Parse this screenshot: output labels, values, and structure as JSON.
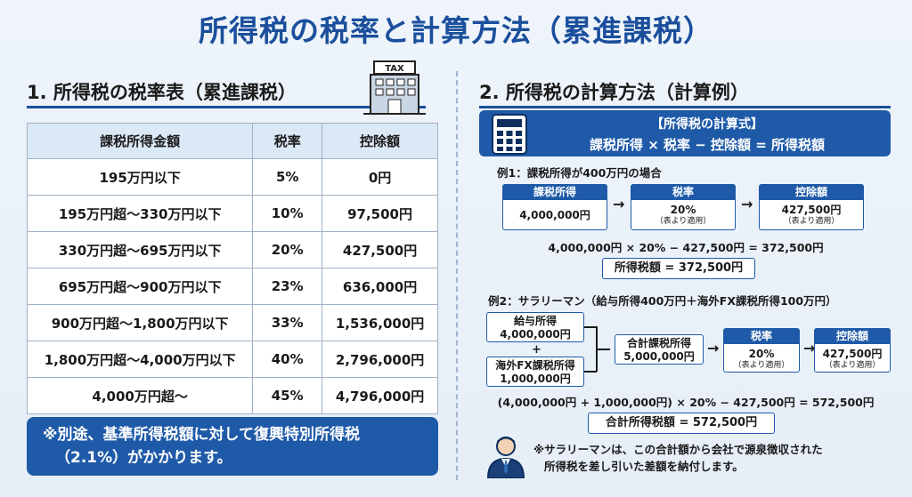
{
  "title": "所得税の税率と計算方法（累進課税）",
  "left": {
    "heading": "1. 所得税の税率表（累進課税）",
    "building_sign": "TAX",
    "table": {
      "headers": [
        "課税所得金額",
        "税率",
        "控除額"
      ],
      "rows": [
        [
          "195万円以下",
          "5%",
          "0円"
        ],
        [
          "195万円超〜330万円以下",
          "10%",
          "97,500円"
        ],
        [
          "330万円超〜695万円以下",
          "20%",
          "427,500円"
        ],
        [
          "695万円超〜900万円以下",
          "23%",
          "636,000円"
        ],
        [
          "900万円超〜1,800万円以下",
          "33%",
          "1,536,000円"
        ],
        [
          "1,800万円超〜4,000万円以下",
          "40%",
          "2,796,000円"
        ],
        [
          "4,000万円超〜",
          "45%",
          "4,796,000円"
        ]
      ]
    },
    "note_line1": "※別途、基準所得税額に対して復興特別所得税",
    "note_line2": "（2.1%）がかかります。"
  },
  "right": {
    "heading": "2. 所得税の計算方法（計算例）",
    "formula_title": "【所得税の計算式】",
    "formula": "課税所得 × 税率 − 控除額 = 所得税額",
    "ex1": {
      "label": "例1：課税所得が400万円の場合",
      "card1_head": "課税所得",
      "card1_val": "4,000,000円",
      "card2_head": "税率",
      "card2_val": "20%",
      "card2_note": "（表より適用）",
      "card3_head": "控除額",
      "card3_val": "427,500円",
      "card3_note": "（表より適用）",
      "equation": "4,000,000円 × 20% − 427,500円 = 372,500円",
      "result": "所得税額 = 372,500円"
    },
    "ex2": {
      "label": "例2：サラリーマン（給与所得400万円＋海外FX課税所得100万円）",
      "salary_label": "給与所得",
      "salary_val": "4,000,000円",
      "plus": "+",
      "fx_label": "海外FX課税所得",
      "fx_val": "1,000,000円",
      "total_label": "合計課税所得",
      "total_val": "5,000,000円",
      "rate_head": "税率",
      "rate_val": "20%",
      "rate_note": "（表より適用）",
      "ded_head": "控除額",
      "ded_val": "427,500円",
      "ded_note": "（表より適用）",
      "equation": "(4,000,000円 + 1,000,000円) × 20% − 427,500円 = 572,500円",
      "result": "合計所得税額 = 572,500円"
    },
    "foot_line1": "※サラリーマンは、この合計額から会社で源泉徴収された",
    "foot_line2": "所得税を差し引いた差額を納付します。"
  },
  "colors": {
    "primary": "#1f5aa8",
    "title": "#1b4f9c",
    "table_header": "#dbe8f5"
  },
  "icons": [
    "building-icon",
    "calculator-icon",
    "person-icon",
    "arrow-right-icon"
  ]
}
